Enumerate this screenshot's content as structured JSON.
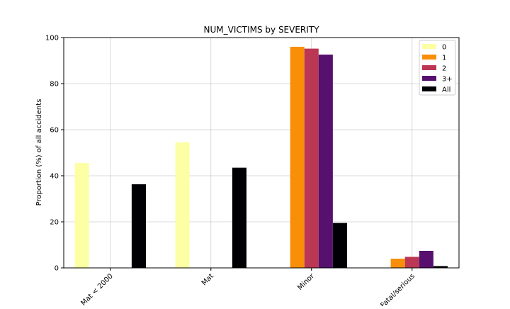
{
  "chart_data": {
    "type": "bar",
    "title": "NUM_VICTIMS by SEVERITY",
    "xlabel": "",
    "ylabel": "Proportion (%) of all accidents",
    "ylim": [
      0,
      100
    ],
    "yticks": [
      0,
      20,
      40,
      60,
      80,
      100
    ],
    "grid": true,
    "legend_position": "top-right",
    "categories": [
      "Mat < 2000",
      "Mat",
      "Minor",
      "Fatal/serious"
    ],
    "series": [
      {
        "name": "0",
        "color": "#fcffa4",
        "values": [
          45.5,
          54.5,
          0,
          0
        ]
      },
      {
        "name": "1",
        "color": "#f98e09",
        "values": [
          0,
          0,
          96.0,
          4.0
        ]
      },
      {
        "name": "2",
        "color": "#bc3754",
        "values": [
          0,
          0,
          95.2,
          4.8
        ]
      },
      {
        "name": "3+",
        "color": "#57106e",
        "values": [
          0,
          0,
          92.6,
          7.4
        ]
      },
      {
        "name": "All",
        "color": "#000004",
        "values": [
          36.3,
          43.5,
          19.5,
          0.8
        ]
      }
    ]
  }
}
